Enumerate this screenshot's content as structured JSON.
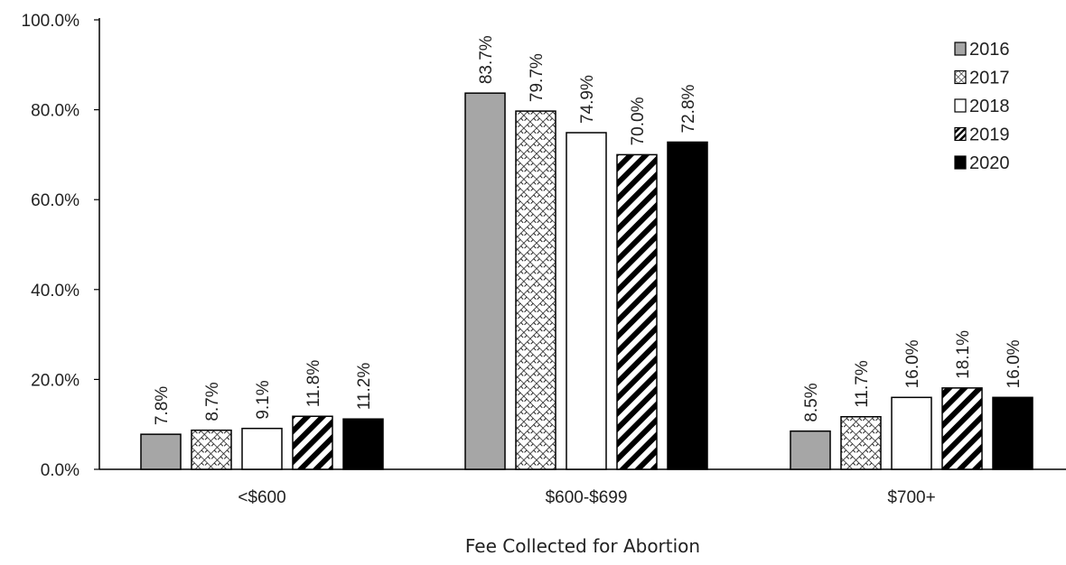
{
  "chart_data": {
    "type": "bar",
    "title": "",
    "xlabel": "Fee Collected for Abortion",
    "ylabel": "",
    "ylim": [
      0,
      100
    ],
    "yticks": [
      0,
      20,
      40,
      60,
      80,
      100
    ],
    "ytick_labels": [
      "0.0%",
      "20.0%",
      "40.0%",
      "60.0%",
      "80.0%",
      "100.0%"
    ],
    "categories": [
      "<$600",
      "$600-$699",
      "$700+"
    ],
    "series": [
      {
        "name": "2016",
        "values": [
          7.8,
          83.7,
          8.5
        ],
        "labels": [
          "7.8%",
          "83.7%",
          "8.5%"
        ],
        "pattern": "solid-gray"
      },
      {
        "name": "2017",
        "values": [
          8.7,
          79.7,
          11.7
        ],
        "labels": [
          "8.7%",
          "79.7%",
          "11.7%"
        ],
        "pattern": "crosshatch"
      },
      {
        "name": "2018",
        "values": [
          9.1,
          74.9,
          16.0
        ],
        "labels": [
          "9.1%",
          "74.9%",
          "16.0%"
        ],
        "pattern": "white"
      },
      {
        "name": "2019",
        "values": [
          11.8,
          70.0,
          18.1
        ],
        "labels": [
          "11.8%",
          "70.0%",
          "18.1%"
        ],
        "pattern": "diagonal-stripes"
      },
      {
        "name": "2020",
        "values": [
          11.2,
          72.8,
          16.0
        ],
        "labels": [
          "11.2%",
          "72.8%",
          "16.0%"
        ],
        "pattern": "solid-black"
      }
    ],
    "colors": {
      "gray": "#a6a6a6",
      "black": "#000000",
      "white": "#ffffff",
      "outline": "#000000"
    },
    "legend_position": "top-right",
    "grid": false
  }
}
